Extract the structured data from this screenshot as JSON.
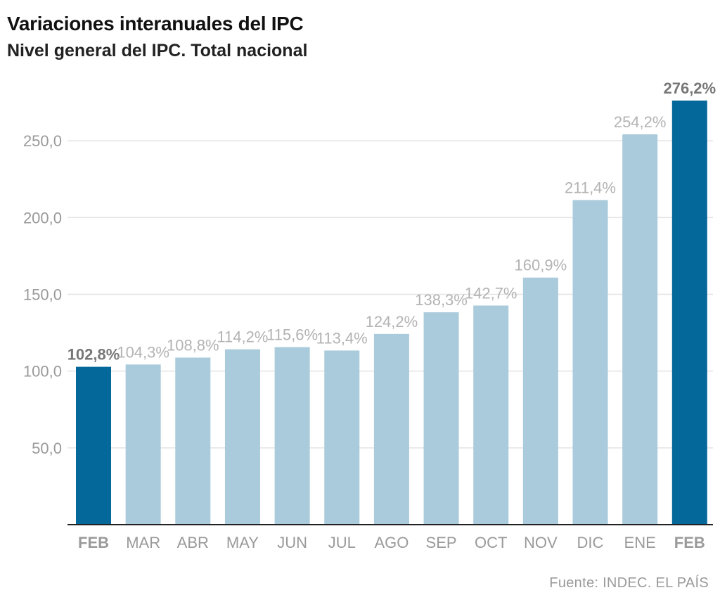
{
  "header": {
    "title": "Variaciones interanuales del IPC",
    "subtitle": "Nivel general del IPC. Total nacional"
  },
  "footer": {
    "source": "Fuente: INDEC. EL PAÍS"
  },
  "colors": {
    "highlight": "#05689b",
    "normal": "#a9cbdc",
    "highlight_label": "#777777",
    "normal_label": "#b3b3b3",
    "grid": "#e3e3e3",
    "axis": "#222222",
    "tick_label": "#9a9a9a"
  },
  "chart_data": {
    "type": "bar",
    "categories": [
      "FEB",
      "MAR",
      "ABR",
      "MAY",
      "JUN",
      "JUL",
      "AGO",
      "SEP",
      "OCT",
      "NOV",
      "DIC",
      "ENE",
      "FEB"
    ],
    "values": [
      102.8,
      104.3,
      108.8,
      114.2,
      115.6,
      113.4,
      124.2,
      138.3,
      142.7,
      160.9,
      211.4,
      254.2,
      276.2
    ],
    "data_labels": [
      "102,8%",
      "104,3%",
      "108,8%",
      "114,2%",
      "115,6%",
      "113,4%",
      "124,2%",
      "138,3%",
      "142,7%",
      "160,9%",
      "211,4%",
      "254,2%",
      "276,2%"
    ],
    "highlighted": [
      true,
      false,
      false,
      false,
      false,
      false,
      false,
      false,
      false,
      false,
      false,
      false,
      true
    ],
    "ylim": [
      0,
      276.2
    ],
    "yticks": [
      50,
      100,
      150,
      200,
      250
    ],
    "ytick_labels": [
      "50,0",
      "100,0",
      "150,0",
      "200,0",
      "250,0"
    ],
    "grid": true,
    "legend": "none",
    "xlabel": "",
    "ylabel": ""
  }
}
